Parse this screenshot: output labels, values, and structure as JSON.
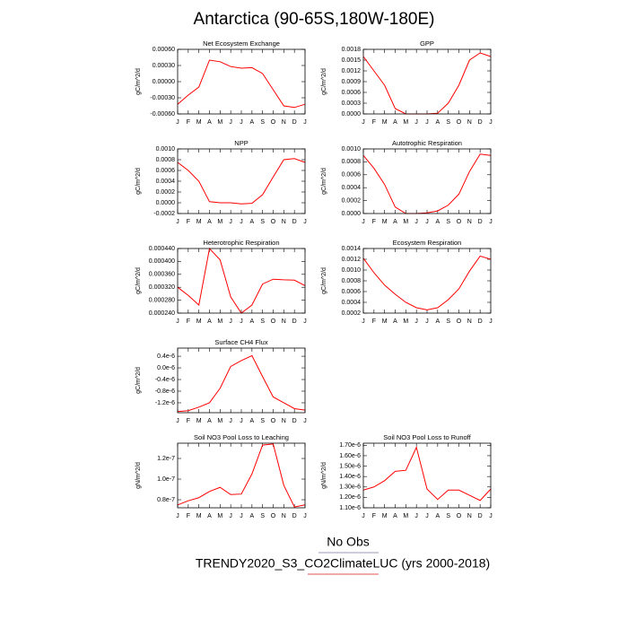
{
  "title": "Antarctica (90-65S,180W-180E)",
  "legend": [
    {
      "name": "No Obs",
      "color": "#9a9ab8"
    },
    {
      "name": "TRENDY2020_S3_CO2ClimateLUC (yrs 2000-2018)",
      "color": "#e05050"
    }
  ],
  "chart_data": [
    {
      "type": "line",
      "title": "Net Ecosystem Exchange",
      "ylabel": "gC/m^2/d",
      "categories": [
        "J",
        "F",
        "M",
        "A",
        "M",
        "J",
        "J",
        "A",
        "S",
        "O",
        "N",
        "D",
        "J"
      ],
      "values": [
        -0.00042,
        -0.00025,
        -0.0001,
        0.0004,
        0.00037,
        0.00028,
        0.00025,
        0.00026,
        0.00015,
        -0.00015,
        -0.00045,
        -0.00048,
        -0.00042
      ],
      "color": "red",
      "ylim": [
        -0.0006,
        0.0006
      ],
      "yticks": [
        {
          "value": -0.0006,
          "label": "-0.00060"
        },
        {
          "value": -0.0003,
          "label": "-0.00030"
        },
        {
          "value": 0,
          "label": "0.00000"
        },
        {
          "value": 0.0003,
          "label": "0.00030"
        },
        {
          "value": 0.0006,
          "label": "0.00060"
        }
      ]
    },
    {
      "type": "line",
      "title": "GPP",
      "ylabel": "gC/m^2/d",
      "categories": [
        "J",
        "F",
        "M",
        "A",
        "M",
        "J",
        "J",
        "A",
        "S",
        "O",
        "N",
        "D",
        "J"
      ],
      "values": [
        0.0016,
        0.0012,
        0.0008,
        0.00015,
        0,
        0,
        0,
        2e-05,
        0.0003,
        0.0008,
        0.0015,
        0.0017,
        0.0016
      ],
      "color": "red",
      "ylim": [
        0,
        0.0018
      ],
      "yticks": [
        {
          "value": 0,
          "label": "0.0000"
        },
        {
          "value": 0.0003,
          "label": "0.0003"
        },
        {
          "value": 0.0006,
          "label": "0.0006"
        },
        {
          "value": 0.0009,
          "label": "0.0009"
        },
        {
          "value": 0.0012,
          "label": "0.0012"
        },
        {
          "value": 0.0015,
          "label": "0.0015"
        },
        {
          "value": 0.0018,
          "label": "0.0018"
        }
      ]
    },
    {
      "type": "line",
      "title": "NPP",
      "ylabel": "gC/m^2/d",
      "categories": [
        "J",
        "F",
        "M",
        "A",
        "M",
        "J",
        "J",
        "A",
        "S",
        "O",
        "N",
        "D",
        "J"
      ],
      "values": [
        0.00075,
        0.0006,
        0.0004,
        2e-05,
        0,
        0,
        -2e-05,
        -1e-05,
        0.00015,
        0.00048,
        0.0008,
        0.00082,
        0.00075
      ],
      "color": "red",
      "ylim": [
        -0.0002,
        0.001
      ],
      "yticks": [
        {
          "value": -0.0002,
          "label": "-0.0002"
        },
        {
          "value": 0,
          "label": "0.0000"
        },
        {
          "value": 0.0002,
          "label": "0.0002"
        },
        {
          "value": 0.0004,
          "label": "0.0004"
        },
        {
          "value": 0.0006,
          "label": "0.0006"
        },
        {
          "value": 0.0008,
          "label": "0.0008"
        },
        {
          "value": 0.001,
          "label": "0.0010"
        }
      ]
    },
    {
      "type": "line",
      "title": "Autotrophic Respiration",
      "ylabel": "gC/m^2/d",
      "categories": [
        "J",
        "F",
        "M",
        "A",
        "M",
        "J",
        "J",
        "A",
        "S",
        "O",
        "N",
        "D",
        "J"
      ],
      "values": [
        0.0009,
        0.0007,
        0.00045,
        0.0001,
        0,
        0,
        1e-05,
        4e-05,
        0.00013,
        0.0003,
        0.00065,
        0.00092,
        0.0009
      ],
      "color": "red",
      "ylim": [
        0,
        0.001
      ],
      "yticks": [
        {
          "value": 0,
          "label": "0.0000"
        },
        {
          "value": 0.0002,
          "label": "0.0002"
        },
        {
          "value": 0.0004,
          "label": "0.0004"
        },
        {
          "value": 0.0006,
          "label": "0.0006"
        },
        {
          "value": 0.0008,
          "label": "0.0008"
        },
        {
          "value": 0.001,
          "label": "0.0010"
        }
      ]
    },
    {
      "type": "line",
      "title": "Heterotrophic Respiration",
      "ylabel": "gC/m^2/d",
      "categories": [
        "J",
        "F",
        "M",
        "A",
        "M",
        "J",
        "J",
        "A",
        "S",
        "O",
        "N",
        "D",
        "J"
      ],
      "values": [
        0.00032,
        0.000295,
        0.000265,
        0.00044,
        0.000405,
        0.00029,
        0.00024,
        0.000265,
        0.00033,
        0.000345,
        0.000343,
        0.000342,
        0.000325
      ],
      "color": "red",
      "ylim": [
        0.00024,
        0.00044
      ],
      "yticks": [
        {
          "value": 0.00024,
          "label": "0.000240"
        },
        {
          "value": 0.00028,
          "label": "0.000280"
        },
        {
          "value": 0.00032,
          "label": "0.000320"
        },
        {
          "value": 0.00036,
          "label": "0.000360"
        },
        {
          "value": 0.0004,
          "label": "0.000400"
        },
        {
          "value": 0.00044,
          "label": "0.000440"
        }
      ]
    },
    {
      "type": "line",
      "title": "Ecosystem Respiration",
      "ylabel": "gC/m^2/d",
      "categories": [
        "J",
        "F",
        "M",
        "A",
        "M",
        "J",
        "J",
        "A",
        "S",
        "O",
        "N",
        "D",
        "J"
      ],
      "values": [
        0.00122,
        0.00095,
        0.00072,
        0.00055,
        0.0004,
        0.0003,
        0.00026,
        0.0003,
        0.00045,
        0.00065,
        0.00098,
        0.00126,
        0.0012
      ],
      "color": "red",
      "ylim": [
        0.0002,
        0.0014
      ],
      "yticks": [
        {
          "value": 0.0002,
          "label": "0.0002"
        },
        {
          "value": 0.0004,
          "label": "0.0004"
        },
        {
          "value": 0.0006,
          "label": "0.0006"
        },
        {
          "value": 0.0008,
          "label": "0.0008"
        },
        {
          "value": 0.001,
          "label": "0.0010"
        },
        {
          "value": 0.0012,
          "label": "0.0012"
        },
        {
          "value": 0.0014,
          "label": "0.0014"
        }
      ]
    },
    {
      "type": "line",
      "title": "Surface CH4 Flux",
      "ylabel": "gC/m^2/d",
      "categories": [
        "J",
        "F",
        "M",
        "A",
        "M",
        "J",
        "J",
        "A",
        "S",
        "O",
        "N",
        "D",
        "J"
      ],
      "values": [
        -1.5e-06,
        -1.47e-06,
        -1.35e-06,
        -1.2e-06,
        -7e-07,
        5e-08,
        2.5e-07,
        4.2e-07,
        -3e-07,
        -1e-06,
        -1.2e-06,
        -1.4e-06,
        -1.45e-06
      ],
      "color": "red",
      "ylim": [
        -1.54e-06,
        6.8e-07
      ],
      "yticks": [
        {
          "value": -1.2e-06,
          "label": "-1.2e-6"
        },
        {
          "value": -8e-07,
          "label": "-0.8e-6"
        },
        {
          "value": -4e-07,
          "label": "-0.4e-6"
        },
        {
          "value": 0,
          "label": "0.0e-6"
        },
        {
          "value": 4e-07,
          "label": "0.4e-6"
        }
      ]
    },
    {
      "type": "line",
      "title": "Soil NO3 Pool Loss to Leaching",
      "ylabel": "gN/m^2/d",
      "categories": [
        "J",
        "F",
        "M",
        "A",
        "M",
        "J",
        "J",
        "A",
        "S",
        "O",
        "N",
        "D",
        "J"
      ],
      "values": [
        7.5e-08,
        7.9e-08,
        8.2e-08,
        8.8e-08,
        9.2e-08,
        8.5e-08,
        8.55e-08,
        1.05e-07,
        1.33e-07,
        1.34e-07,
        9.4e-08,
        7.3e-08,
        7.5e-08
      ],
      "color": "red",
      "ylim": [
        7.22e-08,
        1.348e-07
      ],
      "yticks": [
        {
          "value": 8e-08,
          "label": "0.8e-7"
        },
        {
          "value": 1e-07,
          "label": "1.0e-7"
        },
        {
          "value": 1.2e-07,
          "label": "1.2e-7"
        }
      ]
    },
    {
      "type": "line",
      "title": "Soil NO3 Pool Loss to Runoff",
      "ylabel": "gN/m^2/d",
      "categories": [
        "J",
        "F",
        "M",
        "A",
        "M",
        "J",
        "J",
        "A",
        "S",
        "O",
        "N",
        "D",
        "J"
      ],
      "values": [
        1.27e-06,
        1.3e-06,
        1.36e-06,
        1.45e-06,
        1.46e-06,
        1.68e-06,
        1.28e-06,
        1.18e-06,
        1.27e-06,
        1.27e-06,
        1.22e-06,
        1.17e-06,
        1.28e-06
      ],
      "color": "red",
      "ylim": [
        1.1e-06,
        1.72e-06
      ],
      "yticks": [
        {
          "value": 1.1e-06,
          "label": "1.10e-6"
        },
        {
          "value": 1.2e-06,
          "label": "1.20e-6"
        },
        {
          "value": 1.3e-06,
          "label": "1.30e-6"
        },
        {
          "value": 1.4e-06,
          "label": "1.40e-6"
        },
        {
          "value": 1.5e-06,
          "label": "1.50e-6"
        },
        {
          "value": 1.6e-06,
          "label": "1.60e-6"
        },
        {
          "value": 1.7e-06,
          "label": "1.70e-6"
        }
      ]
    }
  ]
}
